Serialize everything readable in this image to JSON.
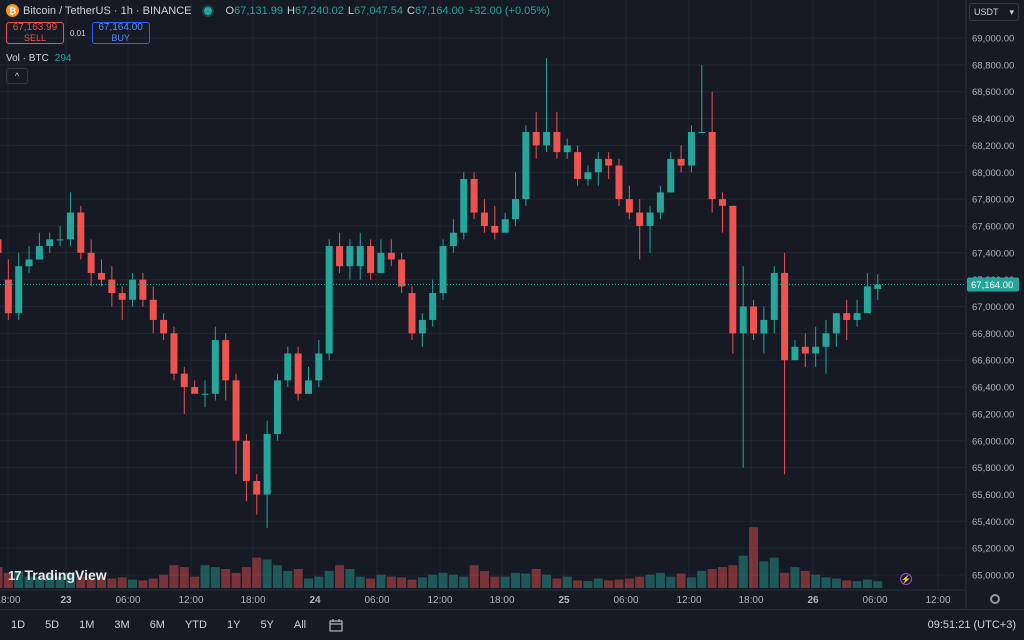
{
  "header": {
    "symbol": "Bitcoin / TetherUS · 1h · BINANCE",
    "o_label": "O",
    "o_val": "67,131.99",
    "h_label": "H",
    "h_val": "67,240.02",
    "l_label": "L",
    "l_val": "67,047.54",
    "c_label": "C",
    "c_val": "67,164.00",
    "change": "+32.00 (+0.05%)",
    "currency": "USDT"
  },
  "trade": {
    "sell_price": "67,163.99",
    "sell_label": "SELL",
    "spread": "0.01",
    "buy_price": "67,164.00",
    "buy_label": "BUY"
  },
  "volume": {
    "label": "Vol · BTC",
    "value": "294"
  },
  "brand": "TradingView",
  "bottom": {
    "ranges": [
      "1D",
      "5D",
      "1M",
      "3M",
      "6M",
      "YTD",
      "1Y",
      "5Y",
      "All"
    ],
    "clock": "09:51:21 (UTC+3)"
  },
  "colors": {
    "up": "#26a69a",
    "down": "#ef5350"
  },
  "chart_data": {
    "type": "candlestick",
    "price_ticks": [
      "69,000.00",
      "68,800.00",
      "68,600.00",
      "68,400.00",
      "68,200.00",
      "68,000.00",
      "67,800.00",
      "67,600.00",
      "67,400.00",
      "67,200.00",
      "67,000.00",
      "66,800.00",
      "66,600.00",
      "66,400.00",
      "66,200.00",
      "66,000.00",
      "65,800.00",
      "65,600.00",
      "65,400.00",
      "65,200.00",
      "65,000.00"
    ],
    "time_ticks": [
      "18:00",
      "23",
      "06:00",
      "12:00",
      "18:00",
      "24",
      "06:00",
      "12:00",
      "18:00",
      "25",
      "06:00",
      "12:00",
      "18:00",
      "26",
      "06:00",
      "12:00"
    ],
    "last_price": "67,164.00",
    "ylim": [
      65000,
      69000
    ],
    "candles": [
      [
        67500,
        67400,
        67600,
        67200
      ],
      [
        67200,
        66950,
        67350,
        66900
      ],
      [
        66950,
        67300,
        67400,
        66900
      ],
      [
        67300,
        67350,
        67450,
        67250
      ],
      [
        67350,
        67450,
        67550,
        67350
      ],
      [
        67450,
        67500,
        67550,
        67400
      ],
      [
        67500,
        67500,
        67600,
        67450
      ],
      [
        67500,
        67700,
        67850,
        67450
      ],
      [
        67700,
        67400,
        67750,
        67350
      ],
      [
        67400,
        67250,
        67500,
        67150
      ],
      [
        67250,
        67200,
        67350,
        67150
      ],
      [
        67200,
        67100,
        67300,
        67000
      ],
      [
        67100,
        67050,
        67150,
        66900
      ],
      [
        67050,
        67200,
        67250,
        67000
      ],
      [
        67200,
        67050,
        67250,
        67000
      ],
      [
        67050,
        66900,
        67150,
        66800
      ],
      [
        66900,
        66800,
        66950,
        66750
      ],
      [
        66800,
        66500,
        66850,
        66450
      ],
      [
        66500,
        66400,
        66550,
        66200
      ],
      [
        66400,
        66350,
        66450,
        66350
      ],
      [
        66350,
        66350,
        66450,
        66250
      ],
      [
        66350,
        66750,
        66850,
        66300
      ],
      [
        66750,
        66450,
        66800,
        66300
      ],
      [
        66450,
        66000,
        66500,
        65750
      ],
      [
        66000,
        65700,
        66050,
        65550
      ],
      [
        65700,
        65600,
        65750,
        65450
      ],
      [
        65600,
        66050,
        66150,
        65350
      ],
      [
        66050,
        66450,
        66500,
        66000
      ],
      [
        66450,
        66650,
        66700,
        66400
      ],
      [
        66650,
        66350,
        66700,
        66300
      ],
      [
        66350,
        66450,
        66550,
        66350
      ],
      [
        66450,
        66650,
        66750,
        66400
      ],
      [
        66650,
        67450,
        67500,
        66600
      ],
      [
        67450,
        67300,
        67550,
        67250
      ],
      [
        67300,
        67450,
        67500,
        67200
      ],
      [
        67300,
        67450,
        67550,
        67200
      ],
      [
        67450,
        67250,
        67500,
        67200
      ],
      [
        67250,
        67400,
        67500,
        67250
      ],
      [
        67400,
        67350,
        67500,
        67300
      ],
      [
        67350,
        67150,
        67400,
        67100
      ],
      [
        67100,
        66800,
        67150,
        66750
      ],
      [
        66800,
        66900,
        66950,
        66700
      ],
      [
        66900,
        67100,
        67200,
        66850
      ],
      [
        67100,
        67450,
        67500,
        67050
      ],
      [
        67450,
        67550,
        67650,
        67400
      ],
      [
        67550,
        67950,
        68000,
        67500
      ],
      [
        67950,
        67700,
        68000,
        67650
      ],
      [
        67700,
        67600,
        67800,
        67550
      ],
      [
        67600,
        67550,
        67750,
        67500
      ],
      [
        67550,
        67650,
        67700,
        67550
      ],
      [
        67650,
        67800,
        68000,
        67600
      ],
      [
        67800,
        68300,
        68350,
        67750
      ],
      [
        68300,
        68200,
        68450,
        68100
      ],
      [
        68200,
        68300,
        68850,
        68150
      ],
      [
        68300,
        68150,
        68450,
        68100
      ],
      [
        68150,
        68200,
        68250,
        68100
      ],
      [
        68150,
        67950,
        68200,
        67900
      ],
      [
        67950,
        68000,
        68050,
        67900
      ],
      [
        68000,
        68100,
        68150,
        67900
      ],
      [
        68100,
        68050,
        68150,
        67950
      ],
      [
        68050,
        67800,
        68100,
        67750
      ],
      [
        67800,
        67700,
        67900,
        67650
      ],
      [
        67700,
        67600,
        67800,
        67350
      ],
      [
        67600,
        67700,
        67750,
        67400
      ],
      [
        67700,
        67850,
        67900,
        67650
      ],
      [
        67850,
        68100,
        68150,
        67850
      ],
      [
        68100,
        68050,
        68200,
        68000
      ],
      [
        68050,
        68300,
        68350,
        68000
      ],
      [
        68300,
        68300,
        68800,
        68300
      ],
      [
        68300,
        67800,
        68600,
        67700
      ],
      [
        67800,
        67750,
        67850,
        67550
      ],
      [
        67750,
        66800,
        67750,
        66650
      ],
      [
        66800,
        67000,
        67300,
        65800
      ],
      [
        67000,
        66800,
        67050,
        66750
      ],
      [
        66800,
        66900,
        67000,
        66650
      ],
      [
        66900,
        67250,
        67300,
        66800
      ],
      [
        67250,
        66600,
        67400,
        65750
      ],
      [
        66600,
        66700,
        66750,
        66600
      ],
      [
        66700,
        66650,
        66800,
        66550
      ],
      [
        66650,
        66700,
        66850,
        66550
      ],
      [
        66700,
        66800,
        66900,
        66500
      ],
      [
        66800,
        66950,
        66950,
        66700
      ],
      [
        66950,
        66900,
        67050,
        66750
      ],
      [
        66900,
        66950,
        67050,
        66850
      ],
      [
        66950,
        67150,
        67250,
        66950
      ],
      [
        67131,
        67164,
        67240,
        67047
      ]
    ],
    "volume": [
      55,
      40,
      45,
      30,
      28,
      35,
      30,
      40,
      30,
      25,
      30,
      25,
      28,
      22,
      20,
      25,
      35,
      60,
      55,
      30,
      60,
      55,
      50,
      40,
      55,
      80,
      75,
      60,
      45,
      50,
      25,
      30,
      45,
      60,
      50,
      30,
      25,
      35,
      30,
      28,
      22,
      28,
      35,
      40,
      35,
      30,
      60,
      45,
      30,
      30,
      40,
      38,
      50,
      35,
      25,
      30,
      20,
      18,
      25,
      20,
      22,
      25,
      30,
      35,
      40,
      30,
      38,
      28,
      45,
      50,
      55,
      60,
      85,
      160,
      70,
      80,
      40,
      55,
      45,
      35,
      28,
      25,
      20,
      18,
      22,
      18
    ]
  }
}
